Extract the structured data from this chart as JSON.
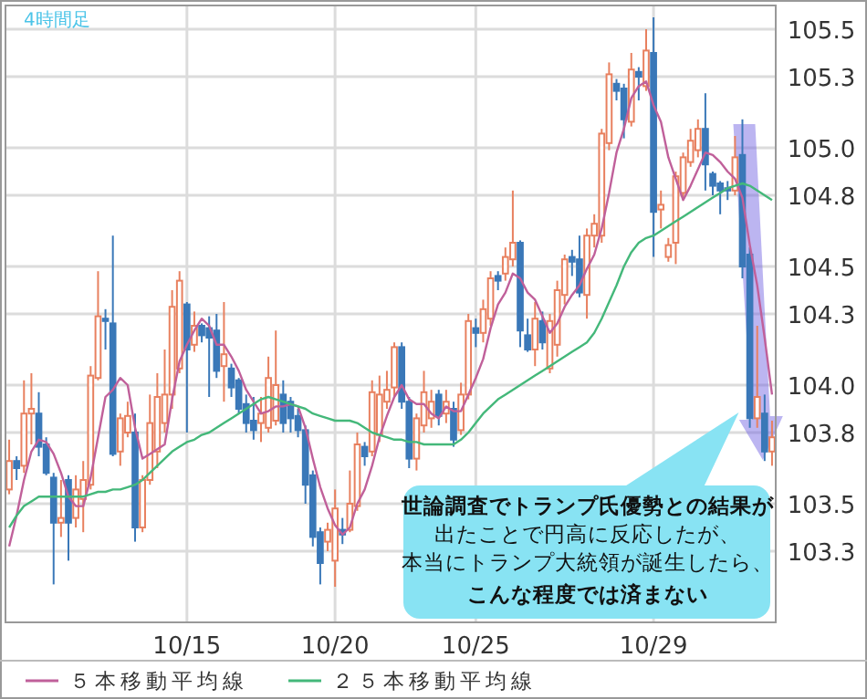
{
  "chart_data": {
    "type": "candlestick",
    "title": "4時間足",
    "categories": [
      null,
      null,
      null,
      null,
      null,
      null,
      null,
      null,
      null,
      null,
      null,
      null,
      null,
      null,
      null,
      null,
      null,
      null,
      null,
      null,
      null,
      null,
      null,
      null,
      "10/15",
      null,
      null,
      null,
      null,
      null,
      null,
      null,
      null,
      null,
      null,
      null,
      null,
      null,
      null,
      null,
      null,
      null,
      null,
      null,
      "10/20",
      null,
      null,
      null,
      null,
      null,
      null,
      null,
      null,
      null,
      null,
      null,
      null,
      null,
      null,
      null,
      null,
      null,
      null,
      "10/25",
      null,
      null,
      null,
      null,
      null,
      null,
      null,
      null,
      null,
      null,
      null,
      null,
      null,
      null,
      null,
      null,
      null,
      null,
      null,
      null,
      null,
      null,
      null,
      "10/29",
      null,
      null,
      null,
      null,
      null,
      null,
      null,
      null,
      null,
      null,
      null,
      null,
      null,
      null,
      null,
      null
    ],
    "ohlc": [
      [
        103.56,
        103.77,
        103.54,
        103.68
      ],
      [
        103.68,
        103.7,
        103.6,
        103.65
      ],
      [
        103.66,
        104.02,
        103.63,
        103.88
      ],
      [
        103.88,
        104.05,
        103.75,
        103.9
      ],
      [
        103.88,
        103.97,
        103.7,
        103.74
      ],
      [
        103.75,
        103.78,
        103.62,
        103.63
      ],
      [
        103.61,
        103.63,
        103.16,
        103.42
      ],
      [
        103.42,
        103.6,
        103.36,
        103.44
      ],
      [
        103.6,
        103.62,
        103.26,
        103.42
      ],
      [
        103.44,
        103.62,
        103.4,
        103.56
      ],
      [
        103.52,
        103.68,
        103.38,
        103.6
      ],
      [
        103.58,
        104.08,
        103.56,
        104.04
      ],
      [
        104.03,
        104.48,
        104.02,
        104.29
      ],
      [
        104.28,
        104.32,
        104.15,
        104.27
      ],
      [
        104.26,
        104.63,
        103.7,
        103.71
      ],
      [
        103.72,
        103.88,
        103.66,
        103.86
      ],
      [
        103.8,
        103.93,
        103.78,
        103.87
      ],
      [
        103.8,
        103.88,
        103.34,
        103.4
      ],
      [
        103.4,
        103.62,
        103.38,
        103.6
      ],
      [
        103.6,
        103.96,
        103.58,
        103.84
      ],
      [
        103.72,
        104.05,
        103.65,
        103.95
      ],
      [
        103.84,
        104.15,
        103.8,
        103.96
      ],
      [
        103.96,
        104.4,
        103.9,
        104.33
      ],
      [
        104.07,
        104.48,
        104.05,
        104.44
      ],
      [
        104.34,
        104.35,
        103.8,
        104.15
      ],
      [
        104.17,
        104.31,
        104.14,
        104.25
      ],
      [
        104.25,
        104.26,
        104.18,
        104.21
      ],
      [
        104.24,
        104.29,
        103.95,
        104.2
      ],
      [
        104.23,
        104.3,
        104.03,
        104.06
      ],
      [
        104.08,
        104.35,
        103.93,
        104.13
      ],
      [
        104.07,
        104.09,
        103.95,
        103.99
      ],
      [
        104.02,
        104.03,
        103.88,
        103.9
      ],
      [
        103.92,
        103.96,
        103.8,
        103.84
      ],
      [
        103.85,
        103.95,
        103.77,
        103.81
      ],
      [
        103.84,
        103.95,
        103.76,
        103.88
      ],
      [
        103.82,
        104.12,
        103.8,
        104.03
      ],
      [
        103.85,
        104.23,
        103.83,
        104.0
      ],
      [
        103.96,
        104.02,
        103.8,
        103.84
      ],
      [
        103.93,
        103.95,
        103.8,
        103.86
      ],
      [
        103.87,
        103.9,
        103.78,
        103.81
      ],
      [
        103.81,
        103.83,
        103.5,
        103.58
      ],
      [
        103.62,
        103.64,
        103.32,
        103.36
      ],
      [
        103.38,
        103.4,
        103.16,
        103.25
      ],
      [
        103.34,
        103.42,
        103.3,
        103.39
      ],
      [
        103.26,
        103.56,
        103.15,
        103.48
      ],
      [
        103.39,
        103.44,
        103.33,
        103.37
      ],
      [
        103.39,
        103.64,
        103.38,
        103.5
      ],
      [
        103.49,
        103.8,
        103.47,
        103.75
      ],
      [
        103.74,
        103.76,
        103.66,
        103.7
      ],
      [
        103.72,
        104.02,
        103.7,
        103.97
      ],
      [
        103.79,
        104.04,
        103.76,
        103.96
      ],
      [
        103.93,
        104.06,
        103.9,
        103.98
      ],
      [
        103.99,
        104.18,
        103.95,
        104.16
      ],
      [
        104.16,
        104.18,
        103.9,
        103.93
      ],
      [
        103.93,
        103.95,
        103.65,
        103.69
      ],
      [
        103.69,
        103.88,
        103.64,
        103.86
      ],
      [
        103.83,
        104.06,
        103.8,
        103.97
      ],
      [
        103.86,
        103.98,
        103.82,
        103.93
      ],
      [
        103.96,
        103.98,
        103.83,
        103.87
      ],
      [
        103.88,
        103.98,
        103.84,
        103.93
      ],
      [
        103.9,
        103.93,
        103.74,
        103.77
      ],
      [
        103.81,
        104.01,
        103.79,
        103.96
      ],
      [
        103.96,
        104.3,
        103.94,
        104.27
      ],
      [
        104.24,
        104.28,
        104.16,
        104.22
      ],
      [
        104.22,
        104.36,
        104.18,
        104.32
      ],
      [
        104.28,
        104.48,
        104.25,
        104.45
      ],
      [
        104.46,
        104.48,
        104.4,
        104.44
      ],
      [
        104.47,
        104.58,
        104.44,
        104.54
      ],
      [
        104.53,
        104.82,
        104.5,
        104.6
      ],
      [
        104.6,
        104.61,
        104.16,
        104.23
      ],
      [
        104.21,
        104.28,
        104.14,
        104.15
      ],
      [
        104.15,
        104.35,
        104.08,
        104.28
      ],
      [
        104.27,
        104.31,
        104.15,
        104.18
      ],
      [
        104.07,
        104.3,
        104.05,
        104.27
      ],
      [
        104.17,
        104.44,
        104.12,
        104.4
      ],
      [
        104.38,
        104.55,
        104.34,
        104.53
      ],
      [
        104.54,
        104.57,
        104.46,
        104.52
      ],
      [
        104.53,
        104.63,
        104.37,
        104.39
      ],
      [
        104.38,
        104.66,
        104.28,
        104.63
      ],
      [
        104.63,
        104.72,
        104.58,
        104.68
      ],
      [
        104.63,
        105.08,
        104.6,
        105.06
      ],
      [
        105.02,
        105.36,
        104.99,
        105.31
      ],
      [
        105.27,
        105.29,
        105.2,
        105.24
      ],
      [
        105.25,
        105.27,
        105.04,
        105.12
      ],
      [
        105.11,
        105.4,
        105.09,
        105.33
      ],
      [
        105.32,
        105.34,
        105.2,
        105.3
      ],
      [
        105.26,
        105.5,
        105.24,
        105.41
      ],
      [
        105.4,
        105.55,
        104.54,
        104.73
      ],
      [
        104.74,
        104.82,
        104.66,
        104.76
      ],
      [
        104.54,
        104.62,
        104.52,
        104.59
      ],
      [
        104.6,
        104.9,
        104.51,
        104.88
      ],
      [
        104.81,
        104.98,
        104.78,
        104.96
      ],
      [
        104.94,
        105.08,
        104.92,
        105.03
      ],
      [
        104.99,
        105.12,
        104.96,
        105.08
      ],
      [
        105.08,
        105.23,
        104.82,
        104.93
      ],
      [
        104.89,
        104.9,
        104.8,
        104.84
      ],
      [
        104.85,
        104.86,
        104.72,
        104.82
      ],
      [
        104.83,
        104.86,
        104.78,
        104.82
      ],
      [
        104.82,
        105.05,
        104.8,
        104.96
      ],
      [
        104.97,
        105.12,
        104.45,
        104.5
      ],
      [
        104.55,
        104.58,
        103.82,
        103.86
      ],
      [
        103.86,
        104.25,
        103.82,
        103.95
      ],
      [
        103.88,
        103.96,
        103.68,
        103.72
      ],
      [
        103.72,
        103.85,
        103.66,
        103.78
      ]
    ],
    "colors": [
      "#e8805f",
      "#3a78b8",
      "#e8805f",
      "#e8805f",
      "#3a78b8",
      "#3a78b8",
      "#3a78b8",
      "#e8805f",
      "#3a78b8",
      "#e8805f",
      "#e8805f",
      "#e8805f",
      "#e8805f",
      "#3a78b8",
      "#3a78b8",
      "#e8805f",
      "#e8805f",
      "#3a78b8",
      "#e8805f",
      "#e8805f",
      "#e8805f",
      "#e8805f",
      "#e8805f",
      "#e8805f",
      "#3a78b8",
      "#e8805f",
      "#3a78b8",
      "#3a78b8",
      "#3a78b8",
      "#e8805f",
      "#3a78b8",
      "#3a78b8",
      "#3a78b8",
      "#3a78b8",
      "#e8805f",
      "#e8805f",
      "#e8805f",
      "#3a78b8",
      "#3a78b8",
      "#3a78b8",
      "#3a78b8",
      "#3a78b8",
      "#3a78b8",
      "#e8805f",
      "#e8805f",
      "#3a78b8",
      "#e8805f",
      "#e8805f",
      "#3a78b8",
      "#e8805f",
      "#e8805f",
      "#e8805f",
      "#e8805f",
      "#3a78b8",
      "#3a78b8",
      "#e8805f",
      "#e8805f",
      "#e8805f",
      "#3a78b8",
      "#e8805f",
      "#3a78b8",
      "#e8805f",
      "#e8805f",
      "#3a78b8",
      "#e8805f",
      "#e8805f",
      "#3a78b8",
      "#e8805f",
      "#e8805f",
      "#3a78b8",
      "#3a78b8",
      "#e8805f",
      "#3a78b8",
      "#e8805f",
      "#e8805f",
      "#e8805f",
      "#3a78b8",
      "#3a78b8",
      "#e8805f",
      "#e8805f",
      "#e8805f",
      "#e8805f",
      "#3a78b8",
      "#3a78b8",
      "#e8805f",
      "#3a78b8",
      "#e8805f",
      "#3a78b8",
      "#e8805f",
      "#e8805f",
      "#e8805f",
      "#e8805f",
      "#e8805f",
      "#e8805f",
      "#3a78b8",
      "#3a78b8",
      "#3a78b8",
      "#3a78b8",
      "#e8805f",
      "#3a78b8",
      "#3a78b8",
      "#e8805f",
      "#3a78b8",
      "#e8805f"
    ],
    "series": [
      {
        "type": "line",
        "name": "５本移動平均線",
        "color": "#c0609a",
        "values": [
          103.32,
          103.45,
          103.6,
          103.72,
          103.77,
          103.76,
          103.71,
          103.63,
          103.53,
          103.49,
          103.49,
          103.61,
          103.78,
          103.95,
          103.98,
          104.03,
          104.0,
          103.82,
          103.69,
          103.71,
          103.73,
          103.75,
          103.94,
          104.1,
          104.17,
          104.23,
          104.28,
          104.25,
          104.17,
          104.17,
          104.12,
          104.06,
          103.98,
          103.93,
          103.88,
          103.89,
          103.91,
          103.91,
          103.92,
          103.91,
          103.82,
          103.69,
          103.57,
          103.48,
          103.41,
          103.37,
          103.4,
          103.5,
          103.56,
          103.66,
          103.78,
          103.87,
          103.95,
          104.0,
          103.94,
          103.92,
          103.92,
          103.88,
          103.86,
          103.91,
          103.89,
          103.89,
          103.96,
          104.03,
          104.11,
          104.24,
          104.34,
          104.39,
          104.47,
          104.45,
          104.39,
          104.36,
          104.29,
          104.22,
          104.26,
          104.33,
          104.38,
          104.42,
          104.49,
          104.55,
          104.66,
          104.81,
          104.98,
          105.08,
          105.21,
          105.26,
          105.28,
          105.18,
          105.11,
          104.96,
          104.87,
          104.78,
          104.84,
          104.91,
          104.98,
          104.97,
          104.94,
          104.9,
          104.87,
          104.79,
          104.59,
          104.42,
          104.2,
          103.96
        ]
      },
      {
        "type": "line",
        "name": "２５本移動平均線",
        "color": "#44b87a",
        "values": [
          103.4,
          103.45,
          103.49,
          103.51,
          103.53,
          103.53,
          103.53,
          103.53,
          103.53,
          103.53,
          103.53,
          103.54,
          103.55,
          103.55,
          103.56,
          103.56,
          103.57,
          103.58,
          103.6,
          103.63,
          103.66,
          103.69,
          103.72,
          103.74,
          103.76,
          103.77,
          103.79,
          103.8,
          103.82,
          103.84,
          103.86,
          103.88,
          103.9,
          103.92,
          103.94,
          103.95,
          103.94,
          103.93,
          103.92,
          103.91,
          103.9,
          103.88,
          103.87,
          103.86,
          103.85,
          103.85,
          103.85,
          103.84,
          103.82,
          103.8,
          103.79,
          103.78,
          103.77,
          103.77,
          103.76,
          103.76,
          103.75,
          103.75,
          103.75,
          103.75,
          103.75,
          103.77,
          103.8,
          103.84,
          103.88,
          103.91,
          103.94,
          103.96,
          103.98,
          104.0,
          104.02,
          104.04,
          104.06,
          104.08,
          104.1,
          104.12,
          104.14,
          104.16,
          104.18,
          104.22,
          104.28,
          104.35,
          104.42,
          104.5,
          104.56,
          104.6,
          104.62,
          104.63,
          104.65,
          104.67,
          104.69,
          104.71,
          104.73,
          104.75,
          104.77,
          104.79,
          104.81,
          104.83,
          104.84,
          104.85,
          104.84,
          104.82,
          104.8,
          104.78
        ]
      }
    ],
    "ylim": [
      103.0,
      105.6
    ],
    "yticks": [
      103.3,
      103.5,
      103.8,
      {
        "value": 104,
        "label": "104.0"
      },
      104.3,
      104.5,
      104.8,
      {
        "value": 105,
        "label": "105.0"
      },
      105.3,
      105.5
    ],
    "grid": true,
    "legend": "bottom",
    "annotations": [
      "世論調査でトランプ氏優勢との結果が",
      "出たことで円高に反応したが、",
      "本当にトランプ大統領が誕生したら、",
      "こんな程度では済まない"
    ]
  }
}
